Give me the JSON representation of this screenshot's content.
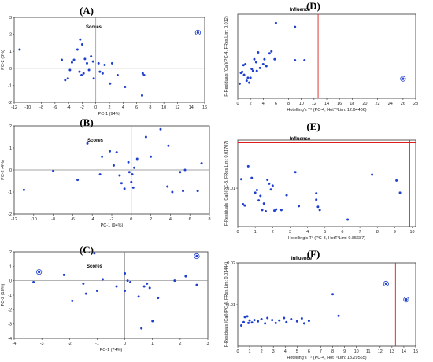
{
  "chart_data": [
    {
      "panel": "(A)",
      "title": "Scores",
      "type": "scatter",
      "xlabel": "PC-1 (94%)",
      "ylabel": "PC-2 (3%)",
      "xlim": [
        -12,
        16
      ],
      "ylim": [
        -2,
        3
      ],
      "xticks": [
        "-12",
        "-10",
        "-8",
        "-6",
        "-4",
        "-2",
        "0",
        "2",
        "4",
        "6",
        "8",
        "10",
        "12",
        "14",
        "16"
      ],
      "yticks": [
        "-2",
        "-1",
        "0",
        "1",
        "2",
        "3"
      ],
      "reference_lines": {
        "x": 0,
        "y": 0,
        "color": "#888888"
      },
      "grid": false,
      "points": [
        {
          "x": -11.2,
          "y": 1.1
        },
        {
          "x": -5.0,
          "y": 0.5
        },
        {
          "x": -4.5,
          "y": -0.7
        },
        {
          "x": -4.1,
          "y": -0.6
        },
        {
          "x": -3.8,
          "y": -0.1
        },
        {
          "x": -3.5,
          "y": 0.35
        },
        {
          "x": -3.2,
          "y": 0.5
        },
        {
          "x": -2.7,
          "y": 1.1
        },
        {
          "x": -2.3,
          "y": 1.7
        },
        {
          "x": -2.0,
          "y": 1.4
        },
        {
          "x": -2.4,
          "y": -0.2
        },
        {
          "x": -2.1,
          "y": -0.4
        },
        {
          "x": -1.8,
          "y": -0.3
        },
        {
          "x": -1.6,
          "y": 0.55
        },
        {
          "x": -1.3,
          "y": 0.3
        },
        {
          "x": -1.0,
          "y": -0.1
        },
        {
          "x": -0.7,
          "y": 0.7
        },
        {
          "x": -0.4,
          "y": 0.4
        },
        {
          "x": -0.3,
          "y": -0.6
        },
        {
          "x": 0.4,
          "y": 0.3
        },
        {
          "x": 0.6,
          "y": -0.2
        },
        {
          "x": 1.0,
          "y": -0.3
        },
        {
          "x": 1.3,
          "y": 0.2
        },
        {
          "x": 2.1,
          "y": -0.9
        },
        {
          "x": 2.4,
          "y": 0.3
        },
        {
          "x": 3.2,
          "y": -0.4
        },
        {
          "x": 4.3,
          "y": -1.1
        },
        {
          "x": 6.9,
          "y": -0.3
        },
        {
          "x": 7.1,
          "y": -0.4
        },
        {
          "x": 6.8,
          "y": -1.6
        }
      ],
      "highlighted": [
        {
          "x": 15.0,
          "y": 2.1
        }
      ],
      "point_color": "#1f3fcf"
    },
    {
      "panel": "(B)",
      "title": "Scores",
      "type": "scatter",
      "xlabel": "PC-1 (94%)",
      "ylabel": "PC-2 (4%)",
      "xlim": [
        -12,
        8
      ],
      "ylim": [
        -2,
        2
      ],
      "xticks": [
        "-12",
        "-10",
        "-8",
        "-6",
        "-4",
        "-2",
        "0",
        "2",
        "4",
        "6",
        "8"
      ],
      "yticks": [
        "-2",
        "-1",
        "0",
        "1",
        "2"
      ],
      "reference_lines": {
        "x": 0,
        "y": 0,
        "color": "#888888"
      },
      "grid": false,
      "points": [
        {
          "x": -11.0,
          "y": -0.9
        },
        {
          "x": -8.0,
          "y": -0.05
        },
        {
          "x": -5.5,
          "y": -0.45
        },
        {
          "x": -4.5,
          "y": 1.2
        },
        {
          "x": -3.0,
          "y": 0.6
        },
        {
          "x": -3.2,
          "y": -0.2
        },
        {
          "x": -2.2,
          "y": 0.85
        },
        {
          "x": -1.5,
          "y": 0.8
        },
        {
          "x": -1.8,
          "y": 0.2
        },
        {
          "x": -1.2,
          "y": -0.25
        },
        {
          "x": -1.0,
          "y": -0.6
        },
        {
          "x": -0.7,
          "y": -0.85
        },
        {
          "x": -0.3,
          "y": 0.35
        },
        {
          "x": -0.2,
          "y": -0.1
        },
        {
          "x": 0.1,
          "y": -0.2
        },
        {
          "x": 0.3,
          "y": 0.1
        },
        {
          "x": 0.0,
          "y": -0.55
        },
        {
          "x": 0.2,
          "y": -0.8
        },
        {
          "x": 0.6,
          "y": 0.5
        },
        {
          "x": 1.5,
          "y": 1.5
        },
        {
          "x": 2.0,
          "y": 0.6
        },
        {
          "x": 3.0,
          "y": 1.85
        },
        {
          "x": 3.8,
          "y": 1.1
        },
        {
          "x": 3.7,
          "y": -0.75
        },
        {
          "x": 4.2,
          "y": -1.0
        },
        {
          "x": 5.0,
          "y": -0.1
        },
        {
          "x": 5.5,
          "y": 0.0
        },
        {
          "x": 5.3,
          "y": -0.95
        },
        {
          "x": 6.8,
          "y": -0.95
        },
        {
          "x": 7.2,
          "y": 0.3
        }
      ],
      "highlighted": [],
      "point_color": "#1f3fcf"
    },
    {
      "panel": "(C)",
      "title": "Scores",
      "type": "scatter",
      "xlabel": "PC-1 (74%)",
      "ylabel": "PC-2 (18%)",
      "xlim": [
        -4,
        3
      ],
      "ylim": [
        -4,
        2
      ],
      "xticks": [
        "-4",
        "-3",
        "-2",
        "-1",
        "0",
        "1",
        "2",
        "3"
      ],
      "yticks": [
        "-4",
        "-3",
        "-2",
        "-1",
        "0",
        "1",
        "2"
      ],
      "reference_lines": {
        "x": 0,
        "y": 0,
        "color": "#888888"
      },
      "grid": false,
      "points": [
        {
          "x": -3.3,
          "y": -0.1
        },
        {
          "x": -2.2,
          "y": 0.4
        },
        {
          "x": -1.9,
          "y": -1.4
        },
        {
          "x": -1.5,
          "y": -0.2
        },
        {
          "x": -1.4,
          "y": -0.9
        },
        {
          "x": -1.1,
          "y": 1.9
        },
        {
          "x": -1.0,
          "y": -0.7
        },
        {
          "x": -0.8,
          "y": 0.1
        },
        {
          "x": -0.3,
          "y": -0.4
        },
        {
          "x": 0.0,
          "y": 0.5
        },
        {
          "x": 0.1,
          "y": 0.0
        },
        {
          "x": 0.2,
          "y": -0.1
        },
        {
          "x": 0.0,
          "y": -0.7
        },
        {
          "x": 0.5,
          "y": -1.1
        },
        {
          "x": 0.7,
          "y": -0.4
        },
        {
          "x": 0.9,
          "y": -0.5
        },
        {
          "x": 0.8,
          "y": -0.2
        },
        {
          "x": 1.2,
          "y": -1.2
        },
        {
          "x": 1.0,
          "y": -2.8
        },
        {
          "x": 0.6,
          "y": -3.3
        },
        {
          "x": 1.8,
          "y": 0.0
        },
        {
          "x": 2.2,
          "y": 0.3
        },
        {
          "x": 2.6,
          "y": -0.3
        }
      ],
      "highlighted": [
        {
          "x": -3.1,
          "y": 0.6
        },
        {
          "x": 2.6,
          "y": 1.7
        }
      ],
      "point_color": "#1f3fcf"
    },
    {
      "panel": "(D)",
      "title": "Influence",
      "type": "scatter",
      "xlabel": "Hotelling's T² (PC-4, HotT²Lim: 12.64406)",
      "ylabel": "F-Residuals (Cal)(PC-4, FRes.Lim: 0.012)",
      "xlim": [
        0,
        28
      ],
      "ylim": [
        0.004,
        0.0126
      ],
      "xticks": [
        "0",
        "2",
        "4",
        "6",
        "8",
        "10",
        "12",
        "14",
        "16",
        "18",
        "20",
        "22",
        "24",
        "26",
        "28"
      ],
      "yticks": [],
      "threshold_lines": {
        "x": 12.64406,
        "y": 0.012,
        "color": "#dd1c1c"
      },
      "grid": false,
      "points": [
        {
          "x": 0.3,
          "y": 0.0055
        },
        {
          "x": 0.5,
          "y": 0.0066
        },
        {
          "x": 0.7,
          "y": 0.0067
        },
        {
          "x": 0.9,
          "y": 0.0074
        },
        {
          "x": 1.0,
          "y": 0.0064
        },
        {
          "x": 1.2,
          "y": 0.0075
        },
        {
          "x": 1.4,
          "y": 0.0058
        },
        {
          "x": 1.6,
          "y": 0.0061
        },
        {
          "x": 1.8,
          "y": 0.0056
        },
        {
          "x": 2.0,
          "y": 0.0061
        },
        {
          "x": 2.2,
          "y": 0.007
        },
        {
          "x": 2.4,
          "y": 0.0068
        },
        {
          "x": 2.6,
          "y": 0.008
        },
        {
          "x": 2.9,
          "y": 0.0077
        },
        {
          "x": 3.2,
          "y": 0.0087
        },
        {
          "x": 3.0,
          "y": 0.0068
        },
        {
          "x": 3.5,
          "y": 0.0071
        },
        {
          "x": 4.0,
          "y": 0.0075
        },
        {
          "x": 4.2,
          "y": 0.008
        },
        {
          "x": 4.5,
          "y": 0.0073
        },
        {
          "x": 5.0,
          "y": 0.0086
        },
        {
          "x": 5.3,
          "y": 0.0088
        },
        {
          "x": 5.8,
          "y": 0.008
        },
        {
          "x": 6.0,
          "y": 0.0117
        },
        {
          "x": 9.0,
          "y": 0.0113
        },
        {
          "x": 9.0,
          "y": 0.0079
        },
        {
          "x": 10.5,
          "y": 0.0079
        }
      ],
      "highlighted": [
        {
          "x": 26.0,
          "y": 0.006
        }
      ],
      "point_color": "#1f3fcf"
    },
    {
      "panel": "(E)",
      "title": "Influence",
      "type": "scatter",
      "xlabel": "Hotelling's T² (PC-3, HotT²Lim: 9.85687)",
      "ylabel": "F-Residuals (Cal)(PC-3, FRes.Lim: 0.01707)",
      "xlim": [
        0,
        10.2
      ],
      "ylim": [
        0.004,
        0.0175
      ],
      "xticks": [
        "0",
        "1",
        "2",
        "3",
        "4",
        "5",
        "6",
        "7",
        "8",
        "9",
        "10"
      ],
      "yticks": [
        "0.01"
      ],
      "threshold_lines": {
        "x": 9.85687,
        "y": 0.01707,
        "color": "#dd1c1c"
      },
      "grid": false,
      "points": [
        {
          "x": 0.2,
          "y": 0.0114
        },
        {
          "x": 0.3,
          "y": 0.0075
        },
        {
          "x": 0.4,
          "y": 0.0073
        },
        {
          "x": 0.6,
          "y": 0.0134
        },
        {
          "x": 0.8,
          "y": 0.0116
        },
        {
          "x": 1.0,
          "y": 0.0093
        },
        {
          "x": 1.1,
          "y": 0.0097
        },
        {
          "x": 1.2,
          "y": 0.0081
        },
        {
          "x": 1.3,
          "y": 0.0088
        },
        {
          "x": 1.4,
          "y": 0.0066
        },
        {
          "x": 1.5,
          "y": 0.0076
        },
        {
          "x": 1.6,
          "y": 0.0064
        },
        {
          "x": 1.7,
          "y": 0.0113
        },
        {
          "x": 1.8,
          "y": 0.0107
        },
        {
          "x": 1.9,
          "y": 0.0098
        },
        {
          "x": 2.0,
          "y": 0.0104
        },
        {
          "x": 2.1,
          "y": 0.0065
        },
        {
          "x": 2.2,
          "y": 0.0067
        },
        {
          "x": 2.5,
          "y": 0.0066
        },
        {
          "x": 2.8,
          "y": 0.0089
        },
        {
          "x": 3.3,
          "y": 0.0125
        },
        {
          "x": 3.5,
          "y": 0.0072
        },
        {
          "x": 4.5,
          "y": 0.0092
        },
        {
          "x": 4.5,
          "y": 0.0082
        },
        {
          "x": 4.6,
          "y": 0.0071
        },
        {
          "x": 4.7,
          "y": 0.0066
        },
        {
          "x": 6.3,
          "y": 0.0051
        },
        {
          "x": 7.7,
          "y": 0.0121
        },
        {
          "x": 9.1,
          "y": 0.0112
        },
        {
          "x": 9.3,
          "y": 0.0093
        }
      ],
      "highlighted": [],
      "point_color": "#1f3fcf"
    },
    {
      "panel": "(F)",
      "title": "Influence",
      "type": "scatter",
      "xlabel": "Hotelling's T² (PC-4, HotT²Lim: 13.29565)",
      "ylabel": "F-Residuals (Cal)(PC-4, FRes.Lim: 0.01444)",
      "xlim": [
        0,
        15
      ],
      "ylim": [
        0.0,
        0.02
      ],
      "xticks": [
        "0",
        "1",
        "2",
        "3",
        "4",
        "5",
        "6",
        "7",
        "8",
        "9",
        "10",
        "11",
        "12",
        "13",
        "14",
        "15"
      ],
      "yticks": [
        "0.01",
        "0.02"
      ],
      "threshold_lines": {
        "x": 13.29565,
        "y": 0.01444,
        "color": "#dd1c1c"
      },
      "grid": false,
      "points": [
        {
          "x": 0.3,
          "y": 0.005
        },
        {
          "x": 0.5,
          "y": 0.0058
        },
        {
          "x": 0.6,
          "y": 0.007
        },
        {
          "x": 0.8,
          "y": 0.0072
        },
        {
          "x": 0.9,
          "y": 0.0056
        },
        {
          "x": 1.0,
          "y": 0.0062
        },
        {
          "x": 1.2,
          "y": 0.0057
        },
        {
          "x": 1.4,
          "y": 0.0063
        },
        {
          "x": 1.7,
          "y": 0.006
        },
        {
          "x": 2.0,
          "y": 0.0065
        },
        {
          "x": 2.3,
          "y": 0.0055
        },
        {
          "x": 2.5,
          "y": 0.0068
        },
        {
          "x": 2.9,
          "y": 0.0063
        },
        {
          "x": 3.2,
          "y": 0.0056
        },
        {
          "x": 3.5,
          "y": 0.0062
        },
        {
          "x": 3.9,
          "y": 0.0068
        },
        {
          "x": 4.1,
          "y": 0.0058
        },
        {
          "x": 4.5,
          "y": 0.0065
        },
        {
          "x": 5.0,
          "y": 0.006
        },
        {
          "x": 5.4,
          "y": 0.0067
        },
        {
          "x": 5.6,
          "y": 0.0055
        },
        {
          "x": 6.0,
          "y": 0.0061
        },
        {
          "x": 8.0,
          "y": 0.0125
        },
        {
          "x": 8.5,
          "y": 0.0073
        }
      ],
      "highlighted": [
        {
          "x": 12.5,
          "y": 0.015
        },
        {
          "x": 14.2,
          "y": 0.0112
        }
      ],
      "point_color": "#1f3fcf"
    }
  ]
}
